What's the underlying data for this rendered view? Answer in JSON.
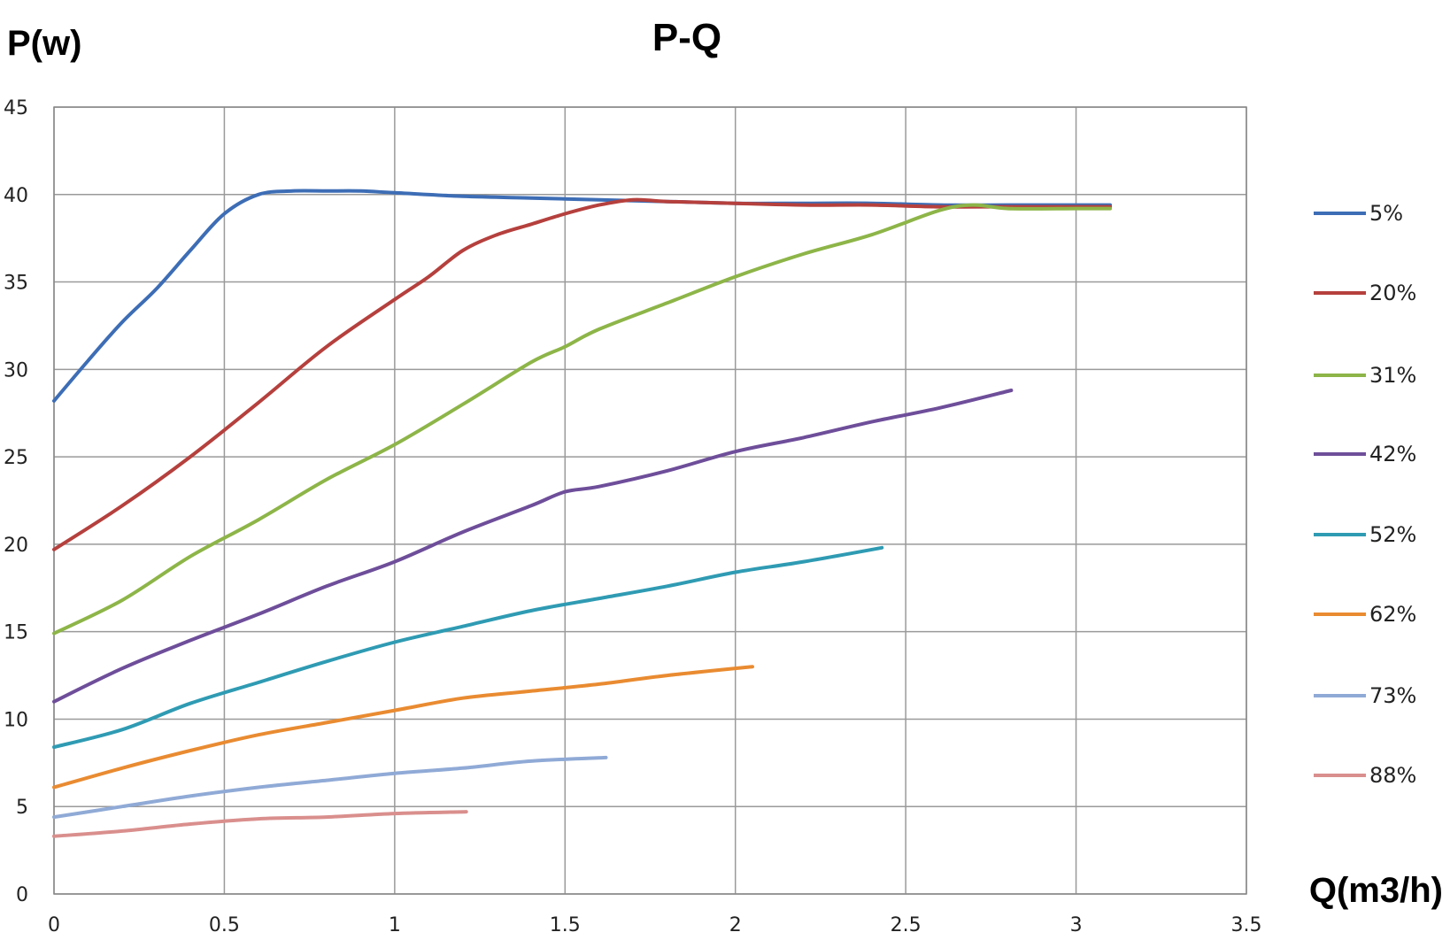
{
  "chart_data": {
    "type": "line",
    "title": "P-Q",
    "xlabel": "Q(m3/h)",
    "ylabel": "P(w)",
    "xlim": [
      0,
      3.5
    ],
    "ylim": [
      0,
      45
    ],
    "x_ticks": [
      0,
      0.5,
      1,
      1.5,
      2,
      2.5,
      3,
      3.5
    ],
    "x_tick_labels": [
      "0",
      "0.5",
      "1",
      "1.5",
      "2",
      "2.5",
      "3",
      "3.5"
    ],
    "y_ticks": [
      0,
      5,
      10,
      15,
      20,
      25,
      30,
      35,
      40,
      45
    ],
    "y_tick_labels": [
      "0",
      "5",
      "10",
      "15",
      "20",
      "25",
      "30",
      "35",
      "40",
      "45"
    ],
    "grid": true,
    "legend_position": "right",
    "series": [
      {
        "name": "5%",
        "color": "#3d6db5",
        "points": [
          [
            0,
            28.2
          ],
          [
            0.1,
            30.5
          ],
          [
            0.2,
            32.7
          ],
          [
            0.3,
            34.6
          ],
          [
            0.4,
            36.8
          ],
          [
            0.5,
            38.9
          ],
          [
            0.6,
            40.0
          ],
          [
            0.7,
            40.2
          ],
          [
            0.8,
            40.2
          ],
          [
            0.9,
            40.2
          ],
          [
            1.0,
            40.1
          ],
          [
            1.2,
            39.9
          ],
          [
            1.4,
            39.8
          ],
          [
            1.6,
            39.7
          ],
          [
            1.8,
            39.6
          ],
          [
            2.0,
            39.5
          ],
          [
            2.2,
            39.5
          ],
          [
            2.4,
            39.5
          ],
          [
            2.6,
            39.4
          ],
          [
            2.8,
            39.4
          ],
          [
            3.0,
            39.4
          ],
          [
            3.1,
            39.4
          ]
        ]
      },
      {
        "name": "20%",
        "color": "#b5403d",
        "points": [
          [
            0,
            19.7
          ],
          [
            0.2,
            22.2
          ],
          [
            0.4,
            25.0
          ],
          [
            0.6,
            28.1
          ],
          [
            0.8,
            31.3
          ],
          [
            1.0,
            34.0
          ],
          [
            1.1,
            35.3
          ],
          [
            1.2,
            36.8
          ],
          [
            1.3,
            37.7
          ],
          [
            1.4,
            38.3
          ],
          [
            1.5,
            38.9
          ],
          [
            1.6,
            39.4
          ],
          [
            1.7,
            39.7
          ],
          [
            1.8,
            39.6
          ],
          [
            2.0,
            39.5
          ],
          [
            2.2,
            39.4
          ],
          [
            2.4,
            39.4
          ],
          [
            2.6,
            39.3
          ],
          [
            2.8,
            39.3
          ],
          [
            3.0,
            39.3
          ],
          [
            3.1,
            39.3
          ]
        ]
      },
      {
        "name": "31%",
        "color": "#8db548",
        "points": [
          [
            0,
            14.9
          ],
          [
            0.2,
            16.8
          ],
          [
            0.4,
            19.3
          ],
          [
            0.6,
            21.4
          ],
          [
            0.8,
            23.7
          ],
          [
            1.0,
            25.7
          ],
          [
            1.2,
            28.0
          ],
          [
            1.4,
            30.4
          ],
          [
            1.5,
            31.3
          ],
          [
            1.6,
            32.3
          ],
          [
            1.8,
            33.8
          ],
          [
            2.0,
            35.3
          ],
          [
            2.2,
            36.6
          ],
          [
            2.4,
            37.7
          ],
          [
            2.6,
            39.1
          ],
          [
            2.7,
            39.4
          ],
          [
            2.8,
            39.2
          ],
          [
            3.0,
            39.2
          ],
          [
            3.1,
            39.2
          ]
        ]
      },
      {
        "name": "42%",
        "color": "#6e4e9a",
        "points": [
          [
            0,
            11.0
          ],
          [
            0.2,
            12.9
          ],
          [
            0.4,
            14.5
          ],
          [
            0.6,
            16.0
          ],
          [
            0.8,
            17.6
          ],
          [
            1.0,
            19.0
          ],
          [
            1.2,
            20.7
          ],
          [
            1.4,
            22.2
          ],
          [
            1.5,
            23.0
          ],
          [
            1.6,
            23.3
          ],
          [
            1.8,
            24.2
          ],
          [
            2.0,
            25.3
          ],
          [
            2.2,
            26.1
          ],
          [
            2.4,
            27.0
          ],
          [
            2.6,
            27.8
          ],
          [
            2.81,
            28.8
          ]
        ]
      },
      {
        "name": "52%",
        "color": "#2f9bb3",
        "points": [
          [
            0,
            8.4
          ],
          [
            0.2,
            9.4
          ],
          [
            0.4,
            10.9
          ],
          [
            0.6,
            12.1
          ],
          [
            0.8,
            13.3
          ],
          [
            1.0,
            14.4
          ],
          [
            1.2,
            15.3
          ],
          [
            1.4,
            16.2
          ],
          [
            1.6,
            16.9
          ],
          [
            1.8,
            17.6
          ],
          [
            2.0,
            18.4
          ],
          [
            2.2,
            19.0
          ],
          [
            2.43,
            19.8
          ]
        ]
      },
      {
        "name": "62%",
        "color": "#e98b31",
        "points": [
          [
            0,
            6.1
          ],
          [
            0.2,
            7.2
          ],
          [
            0.4,
            8.2
          ],
          [
            0.6,
            9.1
          ],
          [
            0.8,
            9.8
          ],
          [
            1.0,
            10.5
          ],
          [
            1.2,
            11.2
          ],
          [
            1.4,
            11.6
          ],
          [
            1.6,
            12.0
          ],
          [
            1.8,
            12.5
          ],
          [
            2.05,
            13.0
          ]
        ]
      },
      {
        "name": "73%",
        "color": "#90aad6",
        "points": [
          [
            0,
            4.4
          ],
          [
            0.2,
            5.0
          ],
          [
            0.4,
            5.6
          ],
          [
            0.6,
            6.1
          ],
          [
            0.8,
            6.5
          ],
          [
            1.0,
            6.9
          ],
          [
            1.2,
            7.2
          ],
          [
            1.4,
            7.6
          ],
          [
            1.62,
            7.8
          ]
        ]
      },
      {
        "name": "88%",
        "color": "#d98f8d",
        "points": [
          [
            0,
            3.3
          ],
          [
            0.2,
            3.6
          ],
          [
            0.4,
            4.0
          ],
          [
            0.6,
            4.3
          ],
          [
            0.8,
            4.4
          ],
          [
            1.0,
            4.6
          ],
          [
            1.21,
            4.7
          ]
        ]
      }
    ]
  }
}
